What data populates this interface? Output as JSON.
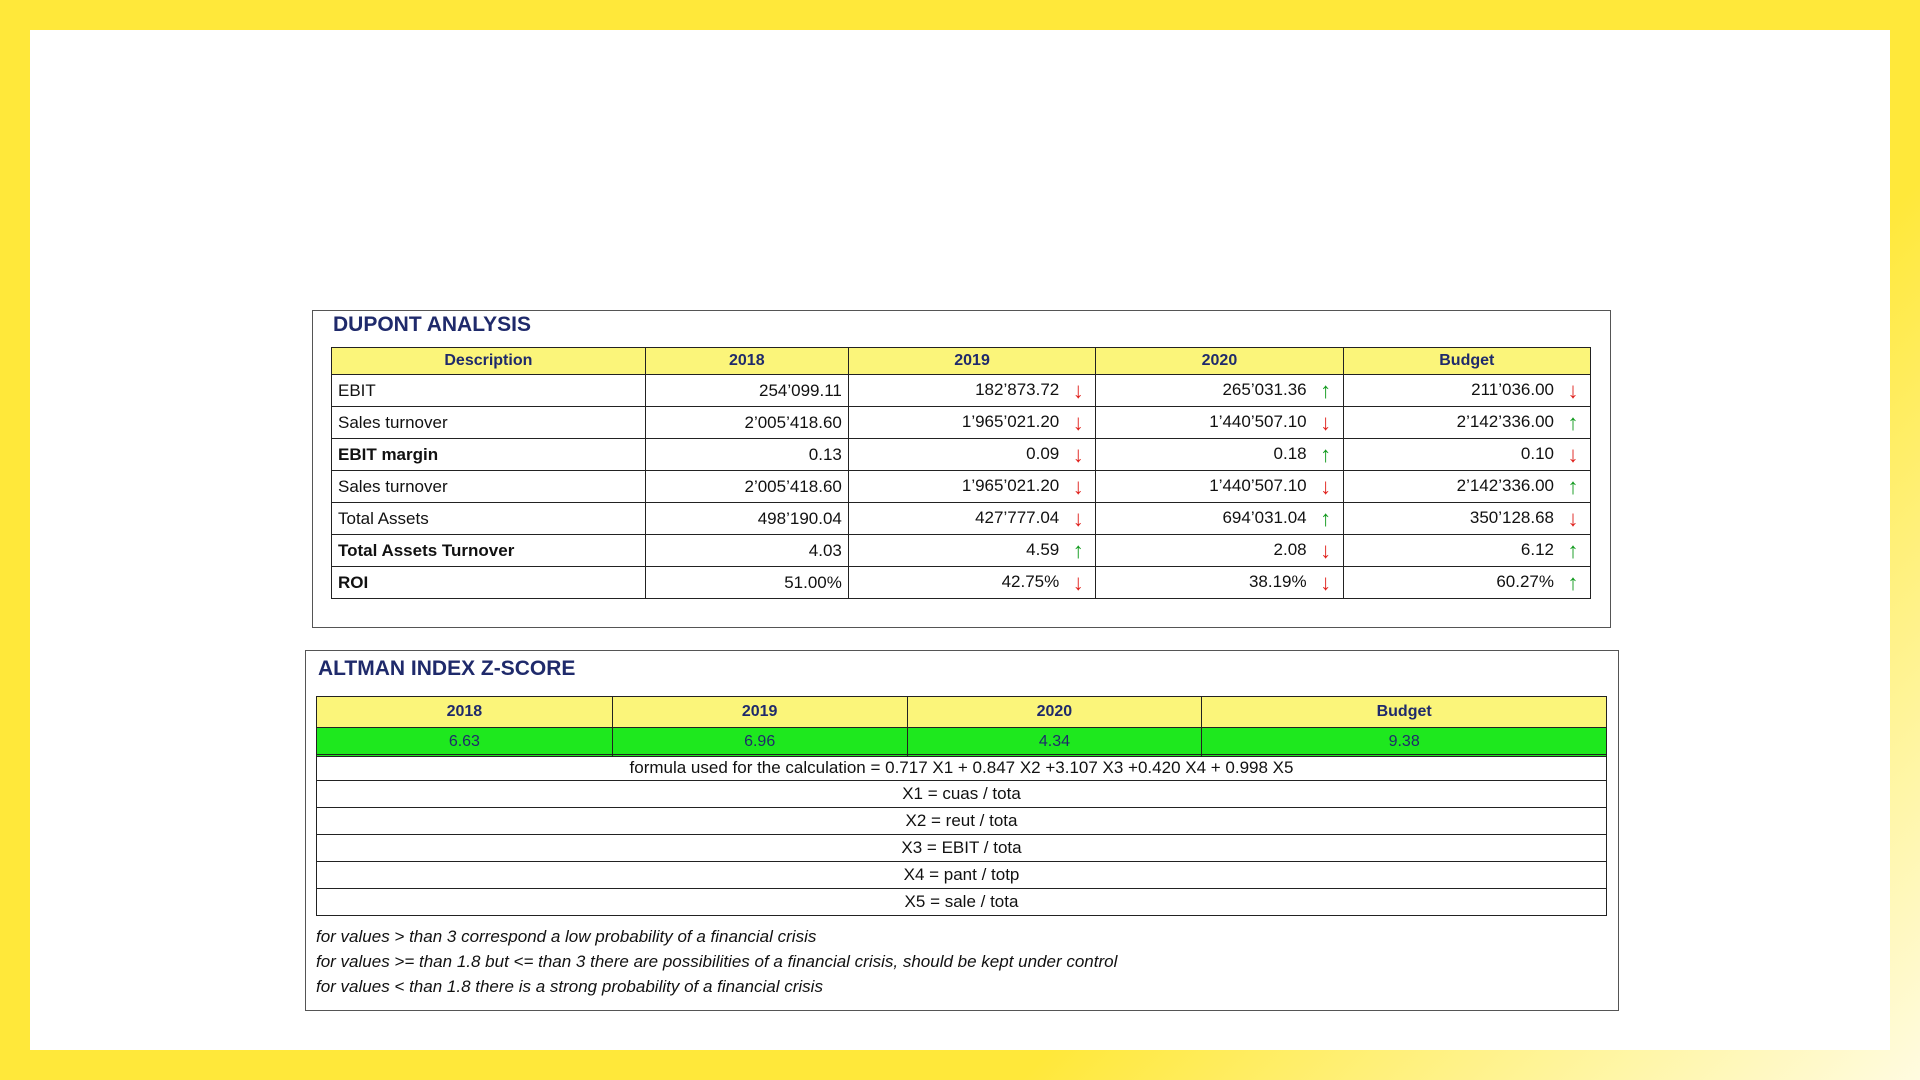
{
  "dupont": {
    "title": "DUPONT ANALYSIS",
    "headers": [
      "Description",
      "2018",
      "2019",
      "2020",
      "Budget"
    ],
    "rows": [
      {
        "label": "EBIT",
        "bold": false,
        "v2018": "254’099.11",
        "v2019": "182’873.72",
        "a2019": "down",
        "v2020": "265’031.36",
        "a2020": "up",
        "vb": "211’036.00",
        "ab": "down"
      },
      {
        "label": "Sales turnover",
        "bold": false,
        "v2018": "2’005’418.60",
        "v2019": "1’965’021.20",
        "a2019": "down",
        "v2020": "1’440’507.10",
        "a2020": "down",
        "vb": "2’142’336.00",
        "ab": "up"
      },
      {
        "label": "EBIT margin",
        "bold": true,
        "v2018": "0.13",
        "v2019": "0.09",
        "a2019": "down",
        "v2020": "0.18",
        "a2020": "up",
        "vb": "0.10",
        "ab": "down"
      },
      {
        "label": "Sales turnover",
        "bold": false,
        "v2018": "2’005’418.60",
        "v2019": "1’965’021.20",
        "a2019": "down",
        "v2020": "1’440’507.10",
        "a2020": "down",
        "vb": "2’142’336.00",
        "ab": "up"
      },
      {
        "label": "Total Assets",
        "bold": false,
        "v2018": "498’190.04",
        "v2019": "427’777.04",
        "a2019": "down",
        "v2020": "694’031.04",
        "a2020": "up",
        "vb": "350’128.68",
        "ab": "down"
      },
      {
        "label": "Total Assets Turnover",
        "bold": true,
        "v2018": "4.03",
        "v2019": "4.59",
        "a2019": "up",
        "v2020": "2.08",
        "a2020": "down",
        "vb": "6.12",
        "ab": "up"
      },
      {
        "label": "ROI",
        "bold": true,
        "v2018": "51.00%",
        "v2019": "42.75%",
        "a2019": "down",
        "v2020": "38.19%",
        "a2020": "down",
        "vb": "60.27%",
        "ab": "up"
      }
    ]
  },
  "altman": {
    "title": "ALTMAN INDEX Z-SCORE",
    "headers": [
      "2018",
      "2019",
      "2020",
      "Budget"
    ],
    "scores": [
      "6.63",
      "6.96",
      "4.34",
      "9.38"
    ],
    "formula_lines": [
      "formula used for the calculation  = 0.717 X1 + 0.847 X2 +3.107 X3 +0.420 X4 + 0.998 X5",
      "X1 = cuas / tota",
      "X2 = reut / tota",
      "X3 = EBIT / tota",
      "X4 = pant / totp",
      "X5 = sale / tota"
    ],
    "notes": [
      "for values > than 3 correspond a low probability of a financial crisis",
      "for values >= than 1.8 but <= than 3 there are possibilities of a financial crisis, should be kept under control",
      "for values < than 1.8 there is a strong probability of a financial crisis"
    ]
  },
  "colors": {
    "frame": "#ffe83a",
    "header_fill": "#fbf57a",
    "score_fill": "#1ee81e",
    "title_text": "#1f2a6b",
    "arrow_up": "#139b1f",
    "arrow_down": "#e0231e"
  }
}
